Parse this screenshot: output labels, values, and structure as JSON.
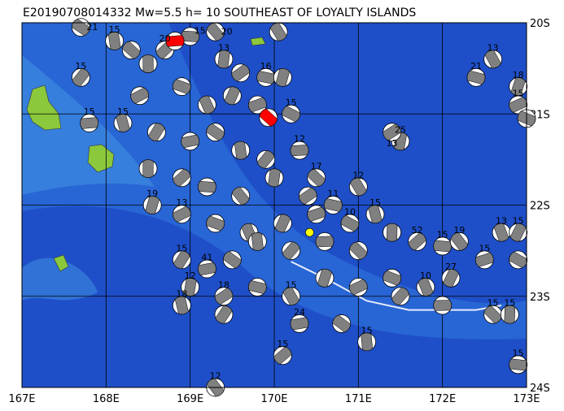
{
  "title": "E20190708014332 Mw=5.5 h= 10 SOUTHEAST OF LOYALTY ISLANDS",
  "map": {
    "lon_range": [
      167,
      173
    ],
    "lat_range": [
      -20,
      -24
    ],
    "lon_ticks": [
      "167E",
      "168E",
      "169E",
      "170E",
      "171E",
      "172E",
      "173E"
    ],
    "lat_ticks": [
      "20S",
      "21S",
      "22S",
      "23S",
      "24S"
    ],
    "colors": {
      "deep": "#1e4fc8",
      "mid": "#2a6ad8",
      "shallow": "#3c8ae0",
      "land": "#8cc83c",
      "trench": "#e6ecff",
      "mech_fill": "#808080",
      "highlight": "#ff0000",
      "main_event": "#ffff00"
    },
    "main_event": {
      "lon": 170.42,
      "lat": -22.3
    },
    "highlight_events": [
      {
        "lon": 168.82,
        "lat": -20.2
      },
      {
        "lon": 169.93,
        "lat": -21.04
      }
    ],
    "events": [
      [
        167.7,
        -20.05,
        "21"
      ],
      [
        168.1,
        -20.2,
        "15"
      ],
      [
        167.7,
        -20.6,
        "15"
      ],
      [
        167.8,
        -21.1,
        "15"
      ],
      [
        168.3,
        -20.3,
        ""
      ],
      [
        168.5,
        -20.45,
        ""
      ],
      [
        168.7,
        -20.3,
        "20"
      ],
      [
        169.0,
        -20.15,
        "15"
      ],
      [
        169.3,
        -20.1,
        "20"
      ],
      [
        169.4,
        -20.4,
        "13"
      ],
      [
        169.6,
        -20.55,
        ""
      ],
      [
        169.9,
        -20.6,
        "16"
      ],
      [
        170.05,
        -20.1,
        ""
      ],
      [
        170.1,
        -20.6,
        ""
      ],
      [
        168.4,
        -20.8,
        ""
      ],
      [
        168.9,
        -20.7,
        ""
      ],
      [
        169.2,
        -20.9,
        ""
      ],
      [
        169.5,
        -20.8,
        ""
      ],
      [
        169.8,
        -20.9,
        ""
      ],
      [
        170.2,
        -21.0,
        "15"
      ],
      [
        168.2,
        -21.1,
        "15"
      ],
      [
        168.6,
        -21.2,
        ""
      ],
      [
        169.0,
        -21.3,
        ""
      ],
      [
        169.3,
        -21.2,
        ""
      ],
      [
        169.6,
        -21.4,
        ""
      ],
      [
        169.9,
        -21.5,
        ""
      ],
      [
        170.3,
        -21.4,
        "12"
      ],
      [
        170.5,
        -21.7,
        "17"
      ],
      [
        168.5,
        -21.6,
        ""
      ],
      [
        168.9,
        -21.7,
        ""
      ],
      [
        169.2,
        -21.8,
        ""
      ],
      [
        169.6,
        -21.9,
        ""
      ],
      [
        170.0,
        -21.7,
        ""
      ],
      [
        170.4,
        -21.9,
        ""
      ],
      [
        170.7,
        -22.0,
        "11"
      ],
      [
        171.0,
        -21.8,
        "12"
      ],
      [
        168.55,
        -22.0,
        "19"
      ],
      [
        168.9,
        -22.1,
        "13"
      ],
      [
        169.3,
        -22.2,
        ""
      ],
      [
        169.7,
        -22.3,
        ""
      ],
      [
        170.1,
        -22.2,
        ""
      ],
      [
        170.5,
        -22.1,
        ""
      ],
      [
        170.9,
        -22.2,
        "10"
      ],
      [
        171.2,
        -22.1,
        "15"
      ],
      [
        168.9,
        -22.6,
        "15"
      ],
      [
        169.2,
        -22.7,
        "41"
      ],
      [
        169.5,
        -22.6,
        ""
      ],
      [
        169.8,
        -22.4,
        ""
      ],
      [
        170.2,
        -22.5,
        ""
      ],
      [
        170.6,
        -22.4,
        ""
      ],
      [
        171.0,
        -22.5,
        ""
      ],
      [
        171.4,
        -22.3,
        ""
      ],
      [
        171.7,
        -22.4,
        "52"
      ],
      [
        172.0,
        -22.45,
        "15"
      ],
      [
        172.2,
        -22.4,
        "19"
      ],
      [
        169.0,
        -22.9,
        "12"
      ],
      [
        169.4,
        -23.0,
        "18"
      ],
      [
        169.8,
        -22.9,
        ""
      ],
      [
        170.2,
        -23.0,
        "15"
      ],
      [
        170.6,
        -22.8,
        ""
      ],
      [
        171.0,
        -22.9,
        ""
      ],
      [
        171.4,
        -22.8,
        ""
      ],
      [
        171.8,
        -22.9,
        "10"
      ],
      [
        172.1,
        -22.8,
        "27"
      ],
      [
        172.5,
        -22.6,
        "15"
      ],
      [
        172.9,
        -22.6,
        ""
      ],
      [
        168.9,
        -23.1,
        "18"
      ],
      [
        169.4,
        -23.2,
        ""
      ],
      [
        170.3,
        -23.3,
        "24"
      ],
      [
        170.8,
        -23.3,
        ""
      ],
      [
        171.1,
        -23.5,
        "15"
      ],
      [
        171.5,
        -23.0,
        ""
      ],
      [
        172.0,
        -23.1,
        ""
      ],
      [
        172.6,
        -23.2,
        "15"
      ],
      [
        172.8,
        -23.2,
        "15"
      ],
      [
        170.1,
        -23.65,
        "15"
      ],
      [
        172.9,
        -23.75,
        "15"
      ],
      [
        169.3,
        -24.0,
        "12"
      ],
      [
        171.5,
        -21.3,
        "25"
      ],
      [
        171.4,
        -21.2,
        "13"
      ],
      [
        172.4,
        -20.6,
        "21"
      ],
      [
        172.6,
        -20.4,
        "13"
      ],
      [
        172.9,
        -20.7,
        "18"
      ],
      [
        172.9,
        -20.9,
        "15"
      ],
      [
        173.0,
        -21.05,
        ""
      ],
      [
        172.7,
        -22.3,
        "13"
      ],
      [
        172.9,
        -22.3,
        "15"
      ]
    ],
    "trench": [
      [
        170.2,
        -22.62
      ],
      [
        170.6,
        -22.8
      ],
      [
        171.1,
        -23.05
      ],
      [
        171.6,
        -23.15
      ],
      [
        172.0,
        -23.15
      ],
      [
        172.4,
        -23.15
      ],
      [
        172.7,
        -23.1
      ]
    ]
  }
}
